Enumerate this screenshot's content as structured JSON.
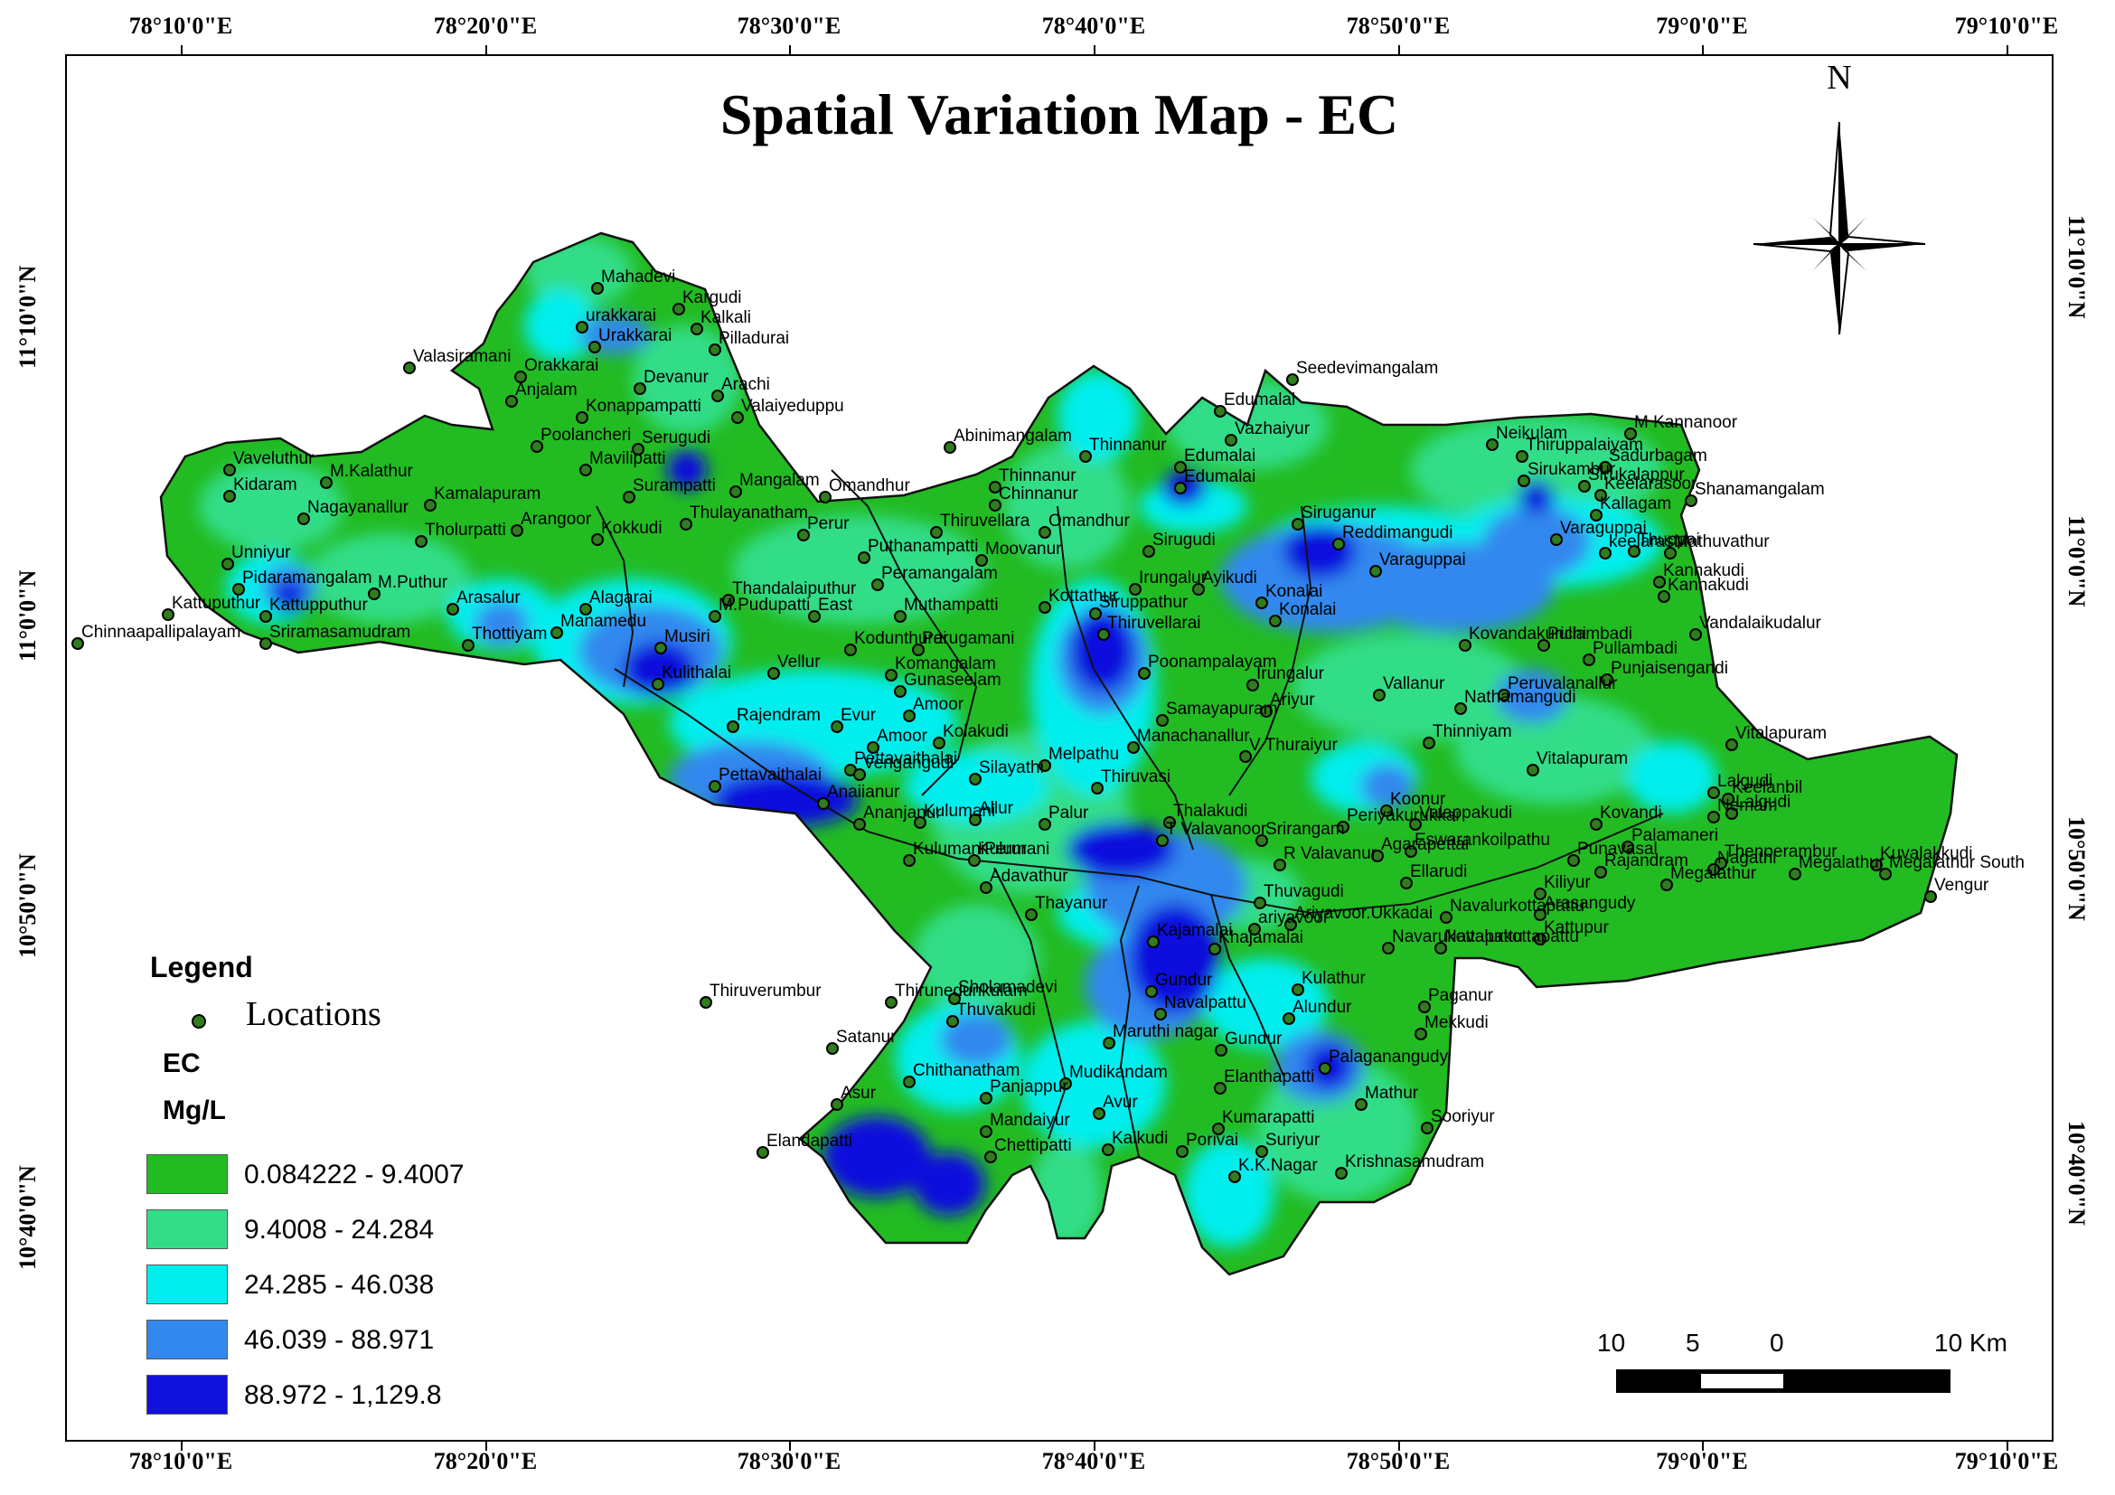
{
  "title": "Spatial Variation Map - EC",
  "north_label": "N",
  "graticule": {
    "top": [
      "78°10'0\"E",
      "78°20'0\"E",
      "78°30'0\"E",
      "78°40'0\"E",
      "78°50'0\"E",
      "79°0'0\"E",
      "79°10'0\"E"
    ],
    "bottom": [
      "78°10'0\"E",
      "78°20'0\"E",
      "78°30'0\"E",
      "78°40'0\"E",
      "78°50'0\"E",
      "79°0'0\"E",
      "79°10'0\"E"
    ],
    "left": [
      "11°10'0\"N",
      "11°0'0\"N",
      "10°50'0\"N",
      "10°40'0\"N"
    ],
    "right": [
      "11°10'0\"N",
      "11°0'0\"N",
      "10°50'0\"N",
      "10°40'0\"N"
    ]
  },
  "legend": {
    "title": "Legend",
    "locations_label": "Locations",
    "variable": "EC",
    "unit": "Mg/L",
    "classes": [
      {
        "label": "0.084222 - 9.4007",
        "color": "#22bb22"
      },
      {
        "label": "9.4008 - 24.284",
        "color": "#33dd88"
      },
      {
        "label": "24.285 - 46.038",
        "color": "#00eeee"
      },
      {
        "label": "46.039 - 88.971",
        "color": "#3388ee"
      },
      {
        "label": "88.972 - 1,129.8",
        "color": "#1111dd"
      }
    ]
  },
  "scale_bar": {
    "labels": [
      "10",
      "5",
      "0",
      "10 Km"
    ]
  },
  "locations": [
    "Mahadevi",
    "Kargudi",
    "Kalkali",
    "urakkarai",
    "Urakkarai",
    "Pilladurai",
    "Valasiramani",
    "Orakkarai",
    "Anjalam",
    "Devanur",
    "Arachi",
    "Konappampatti",
    "Valaiyeduppu",
    "Poolancheri",
    "Serugudi",
    "Mavilipatti",
    "Surampatti",
    "Mangalam",
    "Omandhur",
    "Thulayanatham",
    "Vaveluthur",
    "M.Kalathur",
    "Kidaram",
    "Nagayanallur",
    "Kamalapuram",
    "Tholurpatti",
    "Arangoor",
    "Kokkudi",
    "Unniyur",
    "Pidaramangalam",
    "M.Puthur",
    "Kattuputhur",
    "Kattupputhur",
    "Arasalur",
    "Chinnaapallipalayam",
    "Sriramasamudram",
    "Thottiyam",
    "Alagarai",
    "Manamedu",
    "Musiri",
    "Abinimangalam",
    "Thinnanur",
    "Thinnanur",
    "Chinnanur",
    "Thiruvellara",
    "Omandhur",
    "Puthanampatti",
    "Moovanur",
    "Perur",
    "Peramangalam",
    "Thandalaiputhur",
    "M.Pudupatti",
    "East",
    "Muthampatti",
    "Kodunthurai",
    "Perugamani",
    "Komangalam",
    "Vellur",
    "Kulithalai",
    "Gunaseelam",
    "Amoor",
    "Rajendram",
    "Evur",
    "Amoor",
    "Kolakudi",
    "Pettavaithalai",
    "Pettavaithalai",
    "Vengangudi",
    "Silayathi",
    "Melpathu",
    "Thiruvasi",
    "Anaiianur",
    "Ananjanur",
    "Kulumani",
    "Allur",
    "Palur",
    "KulumaniPerur",
    "Kulumani",
    "Adavathur",
    "Thayanur",
    "Seedevimangalam",
    "Edumalai",
    "Vazhaiyur",
    "Edumalai",
    "Edumalai",
    "Sirugudi",
    "Irungalur",
    "Ayikudi",
    "Kottathur",
    "Siruppathur",
    "Konalai",
    "Konalai",
    "Thiruvellarai",
    "Poonampalayam",
    "Irungalur",
    "Samayapuram",
    "Ariyur",
    "Manachanallur",
    "V Thuraiyur",
    "Thalakudi",
    "T Valavanoor",
    "Srirangam",
    "R Valavanur",
    "Agarapettai",
    "Koonur",
    "Periyakurukkai",
    "Neikulam",
    "Thiruppalaiyam",
    "M Kannanoor",
    "Sadurbagam",
    "Sirukalappur",
    "Sirukambur",
    "Keelarasoor",
    "Kallagam",
    "Shanamangalam",
    "Siruganur",
    "Reddimangudi",
    "Varaguppai",
    "Varaguppai",
    "keelarasur",
    "Thuppai",
    "Mathuvathur",
    "Kannakudi",
    "Kannakudi",
    "Vandalaikudalur",
    "Kovandakurichi",
    "Pullambadi",
    "Pullambadi",
    "Punjaisengandi",
    "Vallanur",
    "Peruvalanallur",
    "Nathamangudi",
    "Thinniyam",
    "Vitalapuram",
    "Vitalapuram",
    "Lalgudi",
    "Lalgudi",
    "Valappakudi",
    "Eswarankoilpathu",
    "Keelanbil",
    "Nemam",
    "Kovandi",
    "Palamaneri",
    "Thenperambur",
    "Nagathi",
    "Rajandram",
    "Punavasal",
    "Megalathur",
    "Megalathur",
    "Megalathur South",
    "Kuvalakkudi",
    "Vengur",
    "Ellarudi",
    "Kiliyur",
    "Arasangudy",
    "Kattupur",
    "Thuvagudi",
    "Ariyavoor.Ukkadai",
    "ariyavoor",
    "Navalurkottapattu",
    "Navalurkottapattu",
    "Navarukottapattu",
    "Kajamalai",
    "Khajamalai",
    "Thiruverumbur",
    "Thirunedunkulam",
    "Sholamadevi",
    "Thuvakudi",
    "Satanur",
    "Gundur",
    "Navalpattu",
    "Kulathur",
    "Paganur",
    "Alundur",
    "Mekkudi",
    "Maruthi nagar",
    "Gundur",
    "Palaganangudy",
    "Asur",
    "Chithanatham",
    "Panjappur",
    "Mudikandam",
    "Avur",
    "Elanthapatti",
    "Mathur",
    "Sooriyur",
    "Elandapatti",
    "Mandaiyur",
    "Chettipatti",
    "Kalkudi",
    "Porivai",
    "Kumarapatti",
    "Suriyur",
    "K.K.Nagar",
    "Krishnasamudram"
  ]
}
